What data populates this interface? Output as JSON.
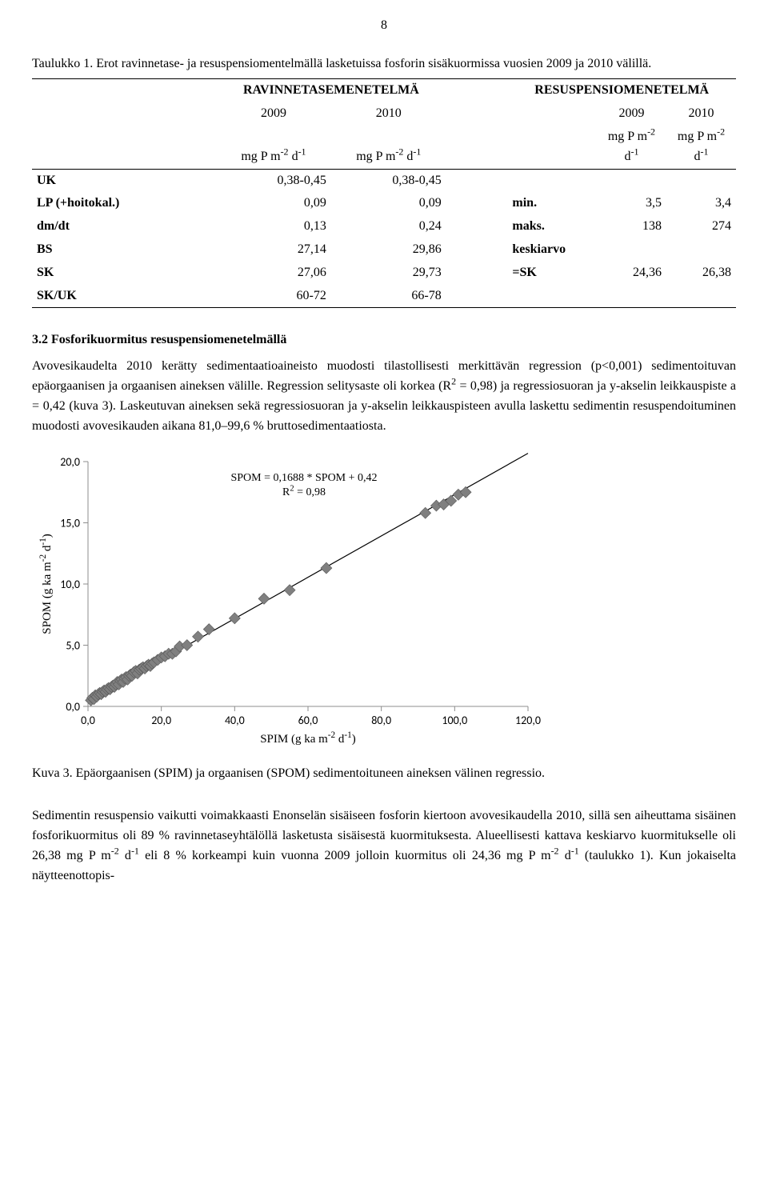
{
  "page_number": "8",
  "table_caption": "Taulukko 1. Erot ravinnetase- ja resuspensiomentelmällä lasketuissa fosforin sisäkuormissa vuosien 2009 ja 2010 välillä.",
  "table": {
    "head_left": "RAVINNETASEMENETELMÄ",
    "head_right": "RESUSPENSIOMENETELMÄ",
    "year1": "2009",
    "year2": "2010",
    "unit_html": "mg P m<sup>-2</sup> d<sup>-1</sup>",
    "rows_left": [
      [
        "UK",
        "0,38-0,45",
        "0,38-0,45"
      ],
      [
        "LP (+hoitokal.)",
        "0,09",
        "0,09"
      ],
      [
        "dm/dt",
        "0,13",
        "0,24"
      ],
      [
        "BS",
        "27,14",
        "29,86"
      ],
      [
        "SK",
        "27,06",
        "29,73"
      ],
      [
        "SK/UK",
        "60-72",
        "66-78"
      ]
    ],
    "rows_right": [
      [
        "",
        "",
        ""
      ],
      [
        "min.",
        "3,5",
        "3,4"
      ],
      [
        "maks.",
        "138",
        "274"
      ],
      [
        "keskiarvo",
        "",
        ""
      ],
      [
        "=SK",
        "24,36",
        "26,38"
      ],
      [
        "",
        "",
        ""
      ]
    ]
  },
  "section_title": "3.2 Fosforikuormitus resuspensiomenetelmällä",
  "para1_html": "Avovesikaudelta 2010 kerätty sedimentaatioaineisto muodosti tilastollisesti merkittävän regression (p&lt;0,001) sedimentoituvan epäorgaanisen ja orgaanisen aineksen välille. Regression selitysaste oli korkea (R<sup>2</sup> = 0,98) ja regressiosuoran ja y-akselin leikkauspiste a = 0,42 (kuva 3). Laskeutuvan aineksen sekä regressiosuoran ja y-akselin leikkauspisteen avulla laskettu sedimentin resuspendoituminen muodosti avovesikauden aikana 81,0–99,6 % bruttosedimentaatiosta.",
  "chart": {
    "type": "scatter",
    "title_lines_html": [
      "SPOM = 0,1688 * SPOM + 0,42",
      "R<sup>2</sup> = 0,98"
    ],
    "xlabel_html": "SPIM (g ka m<sup>-2</sup> d<sup>-1</sup>)",
    "ylabel_html": "SPOM (g ka m<sup>-2</sup> d<sup>-1</sup>)",
    "xlim": [
      0,
      120
    ],
    "xtick_step": 20,
    "ylim": [
      0,
      20
    ],
    "ytick_step": 5,
    "xtick_labels": [
      "0,0",
      "20,0",
      "40,0",
      "60,0",
      "80,0",
      "100,0",
      "120,0"
    ],
    "ytick_labels": [
      "0,0",
      "5,0",
      "10,0",
      "15,0",
      "20,0"
    ],
    "points": [
      [
        0.8,
        0.5
      ],
      [
        1.2,
        0.7
      ],
      [
        1.6,
        0.6
      ],
      [
        2.0,
        0.9
      ],
      [
        2.4,
        0.8
      ],
      [
        2.8,
        1.0
      ],
      [
        3.2,
        1.1
      ],
      [
        3.6,
        1.0
      ],
      [
        4.0,
        1.2
      ],
      [
        4.4,
        1.3
      ],
      [
        4.8,
        1.2
      ],
      [
        5.2,
        1.4
      ],
      [
        5.6,
        1.5
      ],
      [
        6.0,
        1.4
      ],
      [
        6.4,
        1.6
      ],
      [
        6.8,
        1.7
      ],
      [
        7.2,
        1.6
      ],
      [
        7.6,
        1.8
      ],
      [
        8.0,
        2.0
      ],
      [
        8.4,
        1.8
      ],
      [
        8.8,
        2.1
      ],
      [
        9.2,
        2.2
      ],
      [
        9.6,
        2.0
      ],
      [
        10.0,
        2.3
      ],
      [
        10.4,
        2.4
      ],
      [
        10.8,
        2.2
      ],
      [
        11.2,
        2.5
      ],
      [
        11.6,
        2.6
      ],
      [
        12.0,
        2.5
      ],
      [
        12.5,
        2.8
      ],
      [
        13.0,
        2.9
      ],
      [
        13.5,
        2.7
      ],
      [
        14.0,
        3.0
      ],
      [
        14.5,
        3.1
      ],
      [
        15.0,
        3.2
      ],
      [
        15.5,
        3.1
      ],
      [
        16.0,
        3.3
      ],
      [
        16.5,
        3.4
      ],
      [
        17.0,
        3.3
      ],
      [
        17.5,
        3.5
      ],
      [
        18.0,
        3.6
      ],
      [
        19.0,
        3.8
      ],
      [
        20.0,
        4.0
      ],
      [
        21.0,
        4.1
      ],
      [
        22.0,
        4.3
      ],
      [
        23.0,
        4.3
      ],
      [
        24.0,
        4.5
      ],
      [
        25.0,
        4.9
      ],
      [
        27.0,
        5.0
      ],
      [
        30.0,
        5.7
      ],
      [
        33.0,
        6.3
      ],
      [
        40.0,
        7.2
      ],
      [
        48.0,
        8.8
      ],
      [
        55.0,
        9.5
      ],
      [
        65.0,
        11.3
      ],
      [
        92.0,
        15.8
      ],
      [
        95.0,
        16.4
      ],
      [
        97.0,
        16.5
      ],
      [
        99.0,
        16.8
      ],
      [
        101.0,
        17.3
      ],
      [
        103.0,
        17.5
      ]
    ],
    "line": {
      "slope": 0.1688,
      "intercept": 0.42
    },
    "marker_color": "#808080",
    "marker_stroke": "#595959",
    "marker_size": 7,
    "line_color": "#000000",
    "background_color": "#ffffff",
    "axis_color": "#8c8c8c",
    "tick_fontsize": 14,
    "label_fontsize": 15,
    "title_fontsize": 14
  },
  "fig_caption": "Kuva 3. Epäorgaanisen (SPIM) ja orgaanisen (SPOM) sedimentoituneen aineksen välinen regressio.",
  "para2_html": "Sedimentin resuspensio vaikutti voimakkaasti Enonselän sisäiseen fosforin kiertoon avovesikaudella 2010, sillä sen aiheuttama sisäinen fosforikuormitus oli 89 % ravinnetaseyhtälöllä lasketusta sisäisestä kuormituksesta. Alueellisesti kattava keskiarvo kuormitukselle oli 26,38 mg P m<sup>-2</sup> d<sup>-1</sup> eli 8 % korkeampi kuin vuonna 2009 jolloin kuormitus oli 24,36 mg P m<sup>-2</sup> d<sup>-1</sup> (taulukko 1). Kun jokaiselta näytteenottopis-"
}
